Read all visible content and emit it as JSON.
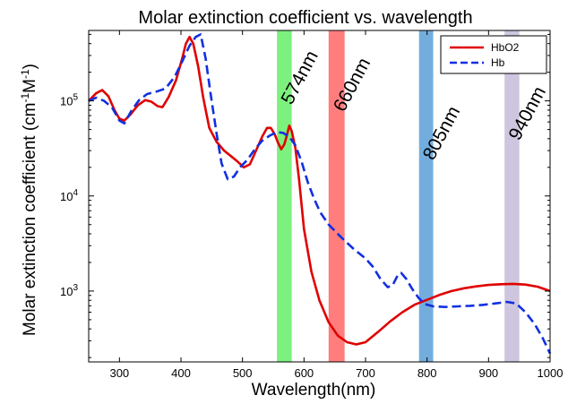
{
  "chart_data": {
    "type": "line",
    "title": "Molar extinction coefficient vs. wavelength",
    "xlabel": "Wavelength(nm)",
    "ylabel_main": "Molar extinction coefficient (cm",
    "ylabel_sup1": "-1",
    "ylabel_mid": "M",
    "ylabel_sup2": "-1",
    "ylabel_end": ")",
    "xlim": [
      250,
      1000
    ],
    "ylim": [
      180,
      550000
    ],
    "yscale": "log",
    "grid": false,
    "legend_position": "top-right",
    "xticks": [
      {
        "value": 300,
        "label": "300"
      },
      {
        "value": 400,
        "label": "400"
      },
      {
        "value": 500,
        "label": "500"
      },
      {
        "value": 600,
        "label": "600"
      },
      {
        "value": 700,
        "label": "700"
      },
      {
        "value": 800,
        "label": "800"
      },
      {
        "value": 900,
        "label": "900"
      },
      {
        "value": 1000,
        "label": "1000"
      }
    ],
    "yticks": [
      {
        "value": 1000,
        "base": "10",
        "exp": "3"
      },
      {
        "value": 10000,
        "base": "10",
        "exp": "4"
      },
      {
        "value": 100000,
        "base": "10",
        "exp": "5"
      }
    ],
    "bands": [
      {
        "label": "574nm",
        "x0": 556,
        "x1": 580,
        "color": "#66ee66"
      },
      {
        "label": "660nm",
        "x0": 640,
        "x1": 666,
        "color": "#ff6666"
      },
      {
        "label": "805nm",
        "x0": 787,
        "x1": 810,
        "color": "#5a9fd8"
      },
      {
        "label": "940nm",
        "x0": 926,
        "x1": 950,
        "color": "#c6bcd8"
      }
    ],
    "series": [
      {
        "name": "HbO2",
        "color": "#e00000",
        "dash": "solid",
        "points": [
          [
            250,
            100000
          ],
          [
            262,
            120000
          ],
          [
            272,
            130000
          ],
          [
            282,
            112000
          ],
          [
            292,
            80000
          ],
          [
            300,
            65000
          ],
          [
            308,
            62000
          ],
          [
            318,
            72000
          ],
          [
            330,
            90000
          ],
          [
            342,
            102000
          ],
          [
            352,
            98000
          ],
          [
            362,
            88000
          ],
          [
            370,
            86000
          ],
          [
            380,
            110000
          ],
          [
            392,
            165000
          ],
          [
            402,
            280000
          ],
          [
            408,
            400000
          ],
          [
            414,
            470000
          ],
          [
            420,
            400000
          ],
          [
            428,
            230000
          ],
          [
            436,
            110000
          ],
          [
            446,
            52000
          ],
          [
            458,
            37000
          ],
          [
            470,
            30000
          ],
          [
            482,
            26000
          ],
          [
            492,
            23000
          ],
          [
            502,
            20000
          ],
          [
            512,
            21500
          ],
          [
            522,
            30000
          ],
          [
            532,
            42000
          ],
          [
            540,
            52000
          ],
          [
            546,
            52000
          ],
          [
            552,
            45000
          ],
          [
            558,
            36000
          ],
          [
            563,
            31000
          ],
          [
            568,
            35000
          ],
          [
            572,
            43000
          ],
          [
            576,
            55000
          ],
          [
            580,
            48000
          ],
          [
            586,
            32000
          ],
          [
            592,
            15000
          ],
          [
            600,
            4500
          ],
          [
            612,
            1600
          ],
          [
            625,
            800
          ],
          [
            640,
            470
          ],
          [
            655,
            340
          ],
          [
            670,
            290
          ],
          [
            685,
            275
          ],
          [
            700,
            290
          ],
          [
            720,
            370
          ],
          [
            740,
            480
          ],
          [
            760,
            600
          ],
          [
            780,
            720
          ],
          [
            800,
            810
          ],
          [
            820,
            910
          ],
          [
            840,
            1000
          ],
          [
            860,
            1070
          ],
          [
            880,
            1120
          ],
          [
            900,
            1160
          ],
          [
            920,
            1180
          ],
          [
            940,
            1190
          ],
          [
            960,
            1170
          ],
          [
            980,
            1110
          ],
          [
            1000,
            1000
          ]
        ]
      },
      {
        "name": "Hb",
        "color": "#1030e0",
        "dash": "dashed",
        "points": [
          [
            250,
            100000
          ],
          [
            262,
            108000
          ],
          [
            275,
            100000
          ],
          [
            288,
            85000
          ],
          [
            300,
            62000
          ],
          [
            308,
            58000
          ],
          [
            320,
            80000
          ],
          [
            332,
            102000
          ],
          [
            345,
            118000
          ],
          [
            360,
            125000
          ],
          [
            375,
            135000
          ],
          [
            390,
            180000
          ],
          [
            402,
            260000
          ],
          [
            414,
            380000
          ],
          [
            424,
            470000
          ],
          [
            432,
            500000
          ],
          [
            440,
            280000
          ],
          [
            448,
            120000
          ],
          [
            458,
            45000
          ],
          [
            466,
            22000
          ],
          [
            476,
            15000
          ],
          [
            486,
            16000
          ],
          [
            496,
            20000
          ],
          [
            508,
            24000
          ],
          [
            520,
            31000
          ],
          [
            532,
            38000
          ],
          [
            544,
            43000
          ],
          [
            556,
            47000
          ],
          [
            566,
            46000
          ],
          [
            576,
            42000
          ],
          [
            586,
            34000
          ],
          [
            596,
            23000
          ],
          [
            606,
            14000
          ],
          [
            616,
            9500
          ],
          [
            626,
            6800
          ],
          [
            640,
            5000
          ],
          [
            660,
            3700
          ],
          [
            680,
            2800
          ],
          [
            700,
            2200
          ],
          [
            712,
            1800
          ],
          [
            724,
            1350
          ],
          [
            736,
            1100
          ],
          [
            744,
            1150
          ],
          [
            752,
            1450
          ],
          [
            758,
            1550
          ],
          [
            766,
            1350
          ],
          [
            776,
            1050
          ],
          [
            786,
            850
          ],
          [
            796,
            730
          ],
          [
            810,
            690
          ],
          [
            830,
            680
          ],
          [
            850,
            690
          ],
          [
            870,
            700
          ],
          [
            890,
            715
          ],
          [
            910,
            740
          ],
          [
            930,
            770
          ],
          [
            945,
            740
          ],
          [
            960,
            600
          ],
          [
            975,
            450
          ],
          [
            988,
            320
          ],
          [
            1000,
            220
          ]
        ]
      }
    ]
  }
}
